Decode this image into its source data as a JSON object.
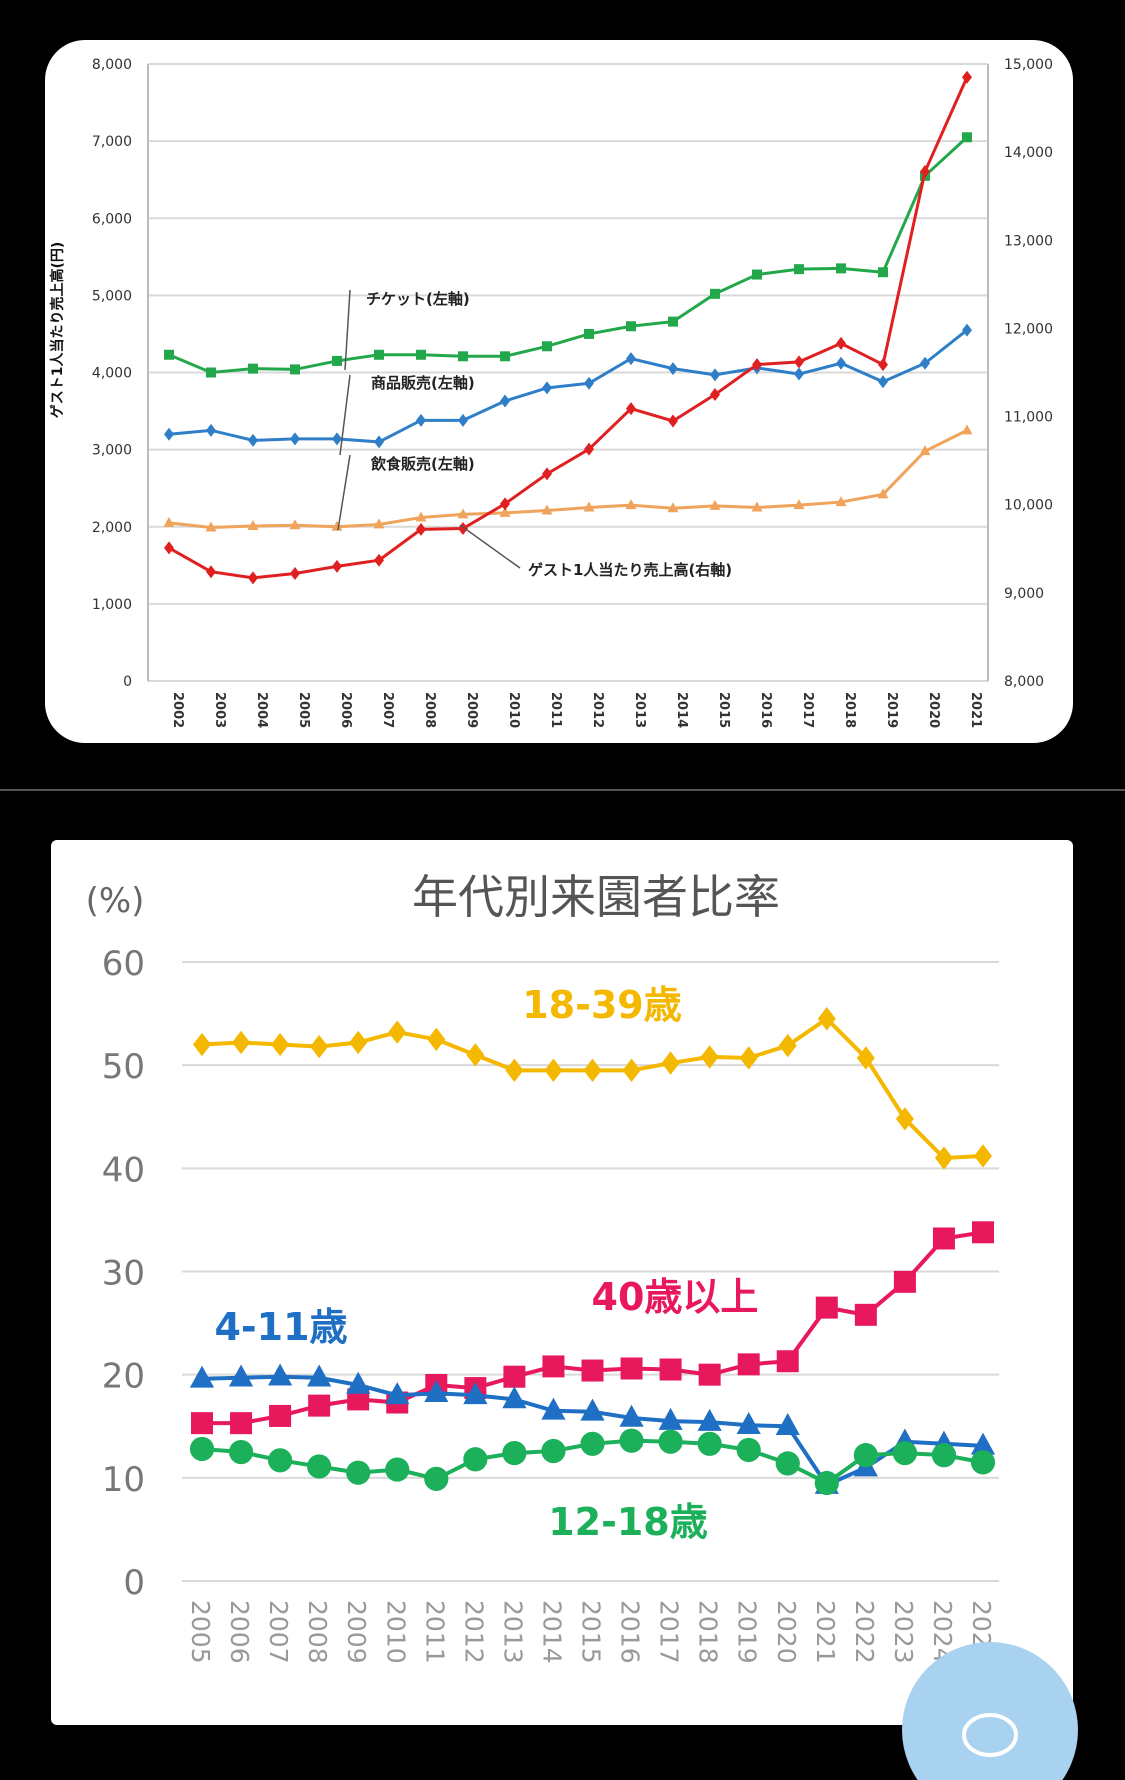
{
  "chart_data": [
    {
      "type": "line",
      "title": "",
      "ylabel": "ゲスト1人当たり売上高(円)",
      "y2label": "",
      "ylim": [
        0,
        8000
      ],
      "y2lim": [
        8000,
        15000
      ],
      "yticks": [
        "0",
        "1,000",
        "2,000",
        "3,000",
        "4,000",
        "5,000",
        "6,000",
        "7,000",
        "8,000"
      ],
      "y2ticks": [
        "8,000",
        "9,000",
        "10,000",
        "11,000",
        "12,000",
        "13,000",
        "14,000",
        "15,000"
      ],
      "grid": true,
      "categories": [
        "2002",
        "2003",
        "2004",
        "2005",
        "2006",
        "2007",
        "2008",
        "2009",
        "2010",
        "2011",
        "2012",
        "2013",
        "2014",
        "2015",
        "2016",
        "2017",
        "2018",
        "2019",
        "2020",
        "2021"
      ],
      "series": [
        {
          "name": "チケット(左軸)",
          "axis": "left",
          "color": "#22a84a",
          "marker": "square",
          "values": [
            4230,
            4000,
            4050,
            4040,
            4150,
            4230,
            4230,
            4210,
            4210,
            4340,
            4500,
            4600,
            4660,
            5020,
            5270,
            5340,
            5350,
            5300,
            6550,
            7050
          ]
        },
        {
          "name": "商品販売(左軸)",
          "axis": "left",
          "color": "#2f7fc8",
          "marker": "diamond",
          "values": [
            3200,
            3250,
            3120,
            3140,
            3140,
            3100,
            3380,
            3380,
            3630,
            3800,
            3860,
            4180,
            4050,
            3970,
            4060,
            3980,
            4120,
            3880,
            4120,
            4550
          ]
        },
        {
          "name": "飲食販売(左軸)",
          "axis": "left",
          "color": "#f0a35a",
          "marker": "triangle",
          "values": [
            2050,
            1990,
            2010,
            2020,
            2000,
            2030,
            2120,
            2160,
            2180,
            2210,
            2250,
            2280,
            2240,
            2270,
            2250,
            2280,
            2320,
            2420,
            2980,
            3250
          ]
        },
        {
          "name": "ゲスト1人当たり売上高(右軸)",
          "axis": "right",
          "color": "#e02020",
          "marker": "diamond",
          "values": [
            9510,
            9240,
            9170,
            9220,
            9300,
            9370,
            9720,
            9730,
            10010,
            10350,
            10630,
            11090,
            10950,
            11250,
            11590,
            11620,
            11830,
            11590,
            13780,
            14850
          ]
        }
      ]
    },
    {
      "type": "line",
      "title": "年代別来園者比率",
      "ylabel": "(%)",
      "ylim": [
        0,
        60
      ],
      "yticks": [
        "0",
        "10",
        "20",
        "30",
        "40",
        "50",
        "60"
      ],
      "grid": true,
      "categories": [
        "2005",
        "2006",
        "2007",
        "2008",
        "2009",
        "2010",
        "2011",
        "2012",
        "2013",
        "2014",
        "2015",
        "2016",
        "2017",
        "2018",
        "2019",
        "2020",
        "2021",
        "2022",
        "2023",
        "2024",
        "2025"
      ],
      "series": [
        {
          "name": "18-39歳",
          "color": "#f5b800",
          "marker": "diamond",
          "values": [
            52,
            52.2,
            52,
            51.8,
            52.2,
            53.2,
            52.5,
            51,
            49.5,
            49.5,
            49.5,
            49.5,
            50.2,
            50.8,
            50.7,
            51.9,
            54.5,
            50.7,
            44.8,
            41,
            41.2
          ]
        },
        {
          "name": "40歳以上",
          "color": "#e8185c",
          "marker": "square",
          "values": [
            15.3,
            15.3,
            16,
            17,
            17.6,
            17.3,
            19,
            18.7,
            19.8,
            20.8,
            20.4,
            20.6,
            20.5,
            20,
            21,
            21.3,
            26.5,
            25.8,
            29,
            33.2,
            33.8
          ]
        },
        {
          "name": "4-11歳",
          "color": "#1f6fc4",
          "marker": "triangle",
          "values": [
            19.6,
            19.7,
            19.8,
            19.7,
            19,
            18,
            18.2,
            18,
            17.6,
            16.5,
            16.4,
            15.8,
            15.5,
            15.4,
            15.1,
            15,
            9.3,
            11,
            13.5,
            13.3,
            13.1
          ]
        },
        {
          "name": "12-18歳",
          "color": "#1db05a",
          "marker": "circle",
          "values": [
            12.8,
            12.5,
            11.7,
            11.1,
            10.5,
            10.8,
            9.9,
            11.8,
            12.4,
            12.6,
            13.3,
            13.6,
            13.5,
            13.3,
            12.7,
            11.4,
            9.5,
            12.2,
            12.4,
            12.2,
            11.5
          ]
        }
      ]
    }
  ],
  "chat_button": {
    "icon": "speech-bubble-icon",
    "color": "#a8d2f0"
  }
}
